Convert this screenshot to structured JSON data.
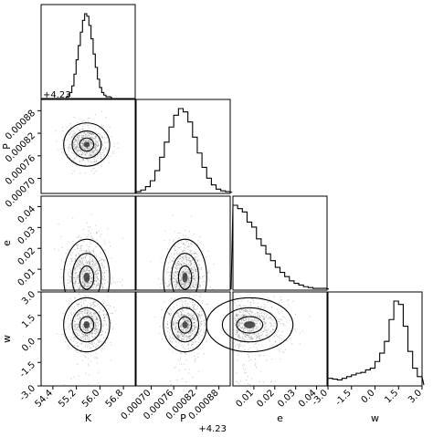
{
  "chart_data": {
    "type": "corner",
    "parameters": [
      {
        "name": "K",
        "label": "K",
        "range": [
          54.0,
          57.2
        ],
        "ticks": [
          54.4,
          55.2,
          56.0,
          56.8
        ],
        "tick_labels": [
          "54.4",
          "55.2",
          "56.0",
          "56.8"
        ],
        "offset_text": "",
        "mean": 55.55,
        "sd": 0.34
      },
      {
        "name": "P",
        "label": "P",
        "range": [
          0.00066,
          0.00091
        ],
        "ticks": [
          0.0007,
          0.00076,
          0.00082,
          0.00088
        ],
        "tick_labels": [
          "0.00070",
          "0.00076",
          "0.00082",
          "0.00088"
        ],
        "offset_text": "+4.23",
        "mean": 0.00079,
        "sd": 2.5e-05
      },
      {
        "name": "e",
        "label": "e",
        "range": [
          0.0,
          0.045
        ],
        "ticks": [
          0.01,
          0.02,
          0.03,
          0.04
        ],
        "tick_labels": [
          "0.01",
          "0.02",
          "0.03",
          "0.04"
        ],
        "offset_text": "",
        "mean": 0.007,
        "sd": 0.008
      },
      {
        "name": "w",
        "label": "w",
        "range": [
          -3.0,
          3.0
        ],
        "ticks": [
          -3.0,
          -1.5,
          0.0,
          1.5,
          3.0
        ],
        "tick_labels": [
          "-3.0",
          "-1.5",
          "0.0",
          "1.5",
          "3.0"
        ],
        "offset_text": "",
        "mean": 0.9,
        "sd": 0.75
      }
    ],
    "histograms": [
      {
        "param": "K",
        "bin_edges_from": 54.9,
        "bin_edges_to": 56.35,
        "counts": [
          2,
          6,
          14,
          28,
          45,
          62,
          78,
          92,
          100,
          97,
          86,
          70,
          52,
          36,
          22,
          12,
          6,
          3,
          1,
          1
        ]
      },
      {
        "param": "P",
        "bin_edges_from": 0.00066,
        "bin_edges_to": 0.00091,
        "counts": [
          1,
          3,
          7,
          14,
          26,
          42,
          60,
          78,
          92,
          100,
          96,
          84,
          66,
          47,
          30,
          17,
          9,
          4,
          2,
          1
        ]
      },
      {
        "param": "e",
        "bin_edges_from": 0.0,
        "bin_edges_to": 0.045,
        "counts": [
          100,
          96,
          92,
          80,
          74,
          60,
          52,
          42,
          34,
          26,
          20,
          15,
          10,
          7,
          5,
          3,
          2,
          1,
          1,
          1
        ]
      },
      {
        "param": "w",
        "bin_edges_from": -3.0,
        "bin_edges_to": 3.0,
        "counts": [
          8,
          7,
          6,
          8,
          10,
          12,
          14,
          15,
          18,
          20,
          28,
          38,
          52,
          78,
          100,
          96,
          70,
          40,
          20,
          10
        ]
      }
    ],
    "contour_levels": [
      0.39,
      0.86,
      0.99
    ],
    "grid": false,
    "legend": "none"
  }
}
